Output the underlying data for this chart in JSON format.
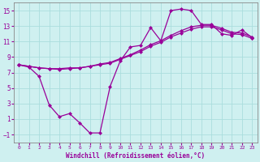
{
  "xlabel": "Windchill (Refroidissement éolien,°C)",
  "bg_color": "#cff0f0",
  "line_color": "#990099",
  "grid_color": "#aadddd",
  "xlim": [
    -0.5,
    23.5
  ],
  "ylim": [
    -2,
    16
  ],
  "xticks": [
    0,
    1,
    2,
    3,
    4,
    5,
    6,
    7,
    8,
    9,
    10,
    11,
    12,
    13,
    14,
    15,
    16,
    17,
    18,
    19,
    20,
    21,
    22,
    23
  ],
  "yticks": [
    -1,
    1,
    3,
    5,
    7,
    9,
    11,
    13,
    15
  ],
  "series1_x": [
    0,
    1,
    2,
    3,
    4,
    5,
    6,
    7,
    8,
    9,
    10,
    11,
    12,
    13,
    14,
    15,
    16,
    17,
    18,
    19,
    20,
    21,
    22,
    23
  ],
  "series1_y": [
    8.0,
    7.7,
    6.5,
    2.8,
    1.3,
    1.7,
    0.5,
    -0.8,
    -0.8,
    5.2,
    8.5,
    10.3,
    10.5,
    12.8,
    11.1,
    15.0,
    15.2,
    15.0,
    13.2,
    13.2,
    12.0,
    11.8,
    12.5,
    11.5
  ],
  "series2_x": [
    0,
    1,
    2,
    3,
    4,
    5,
    6,
    7,
    8,
    9,
    10,
    11,
    12,
    13,
    14,
    15,
    16,
    17,
    18,
    19,
    20,
    21,
    22,
    23
  ],
  "series2_y": [
    8.0,
    7.8,
    7.6,
    7.5,
    7.4,
    7.5,
    7.6,
    7.8,
    8.1,
    8.3,
    8.8,
    9.3,
    9.9,
    10.6,
    11.1,
    11.8,
    12.4,
    12.9,
    13.1,
    13.1,
    12.7,
    12.2,
    12.1,
    11.6
  ],
  "series3_x": [
    0,
    1,
    2,
    3,
    4,
    5,
    6,
    7,
    8,
    9,
    10,
    11,
    12,
    13,
    14,
    15,
    16,
    17,
    18,
    19,
    20,
    21,
    22,
    23
  ],
  "series3_y": [
    8.0,
    7.8,
    7.6,
    7.5,
    7.5,
    7.6,
    7.6,
    7.8,
    8.0,
    8.2,
    8.7,
    9.2,
    9.7,
    10.4,
    10.9,
    11.6,
    12.1,
    12.6,
    12.9,
    12.9,
    12.5,
    12.0,
    11.9,
    11.4
  ]
}
